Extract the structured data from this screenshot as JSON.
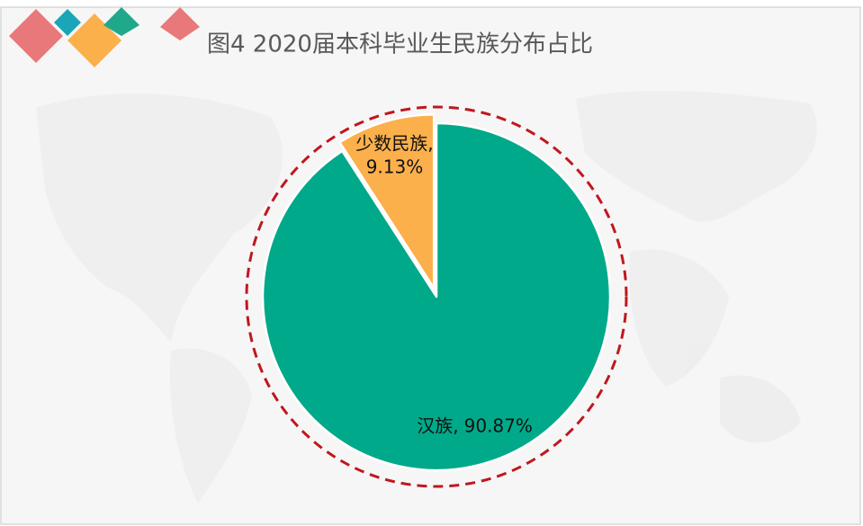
{
  "chart_data": {
    "type": "pie",
    "title": "图4 2020届本科毕业生民族分布占比",
    "categories": [
      "汉族,",
      "少数民族,"
    ],
    "values": [
      90.87,
      9.13
    ],
    "value_labels": [
      "90.87%",
      "9.13%"
    ],
    "colors": [
      "#00a98a",
      "#fbb04c"
    ],
    "start_angle": 0,
    "direction": "clockwise"
  }
}
